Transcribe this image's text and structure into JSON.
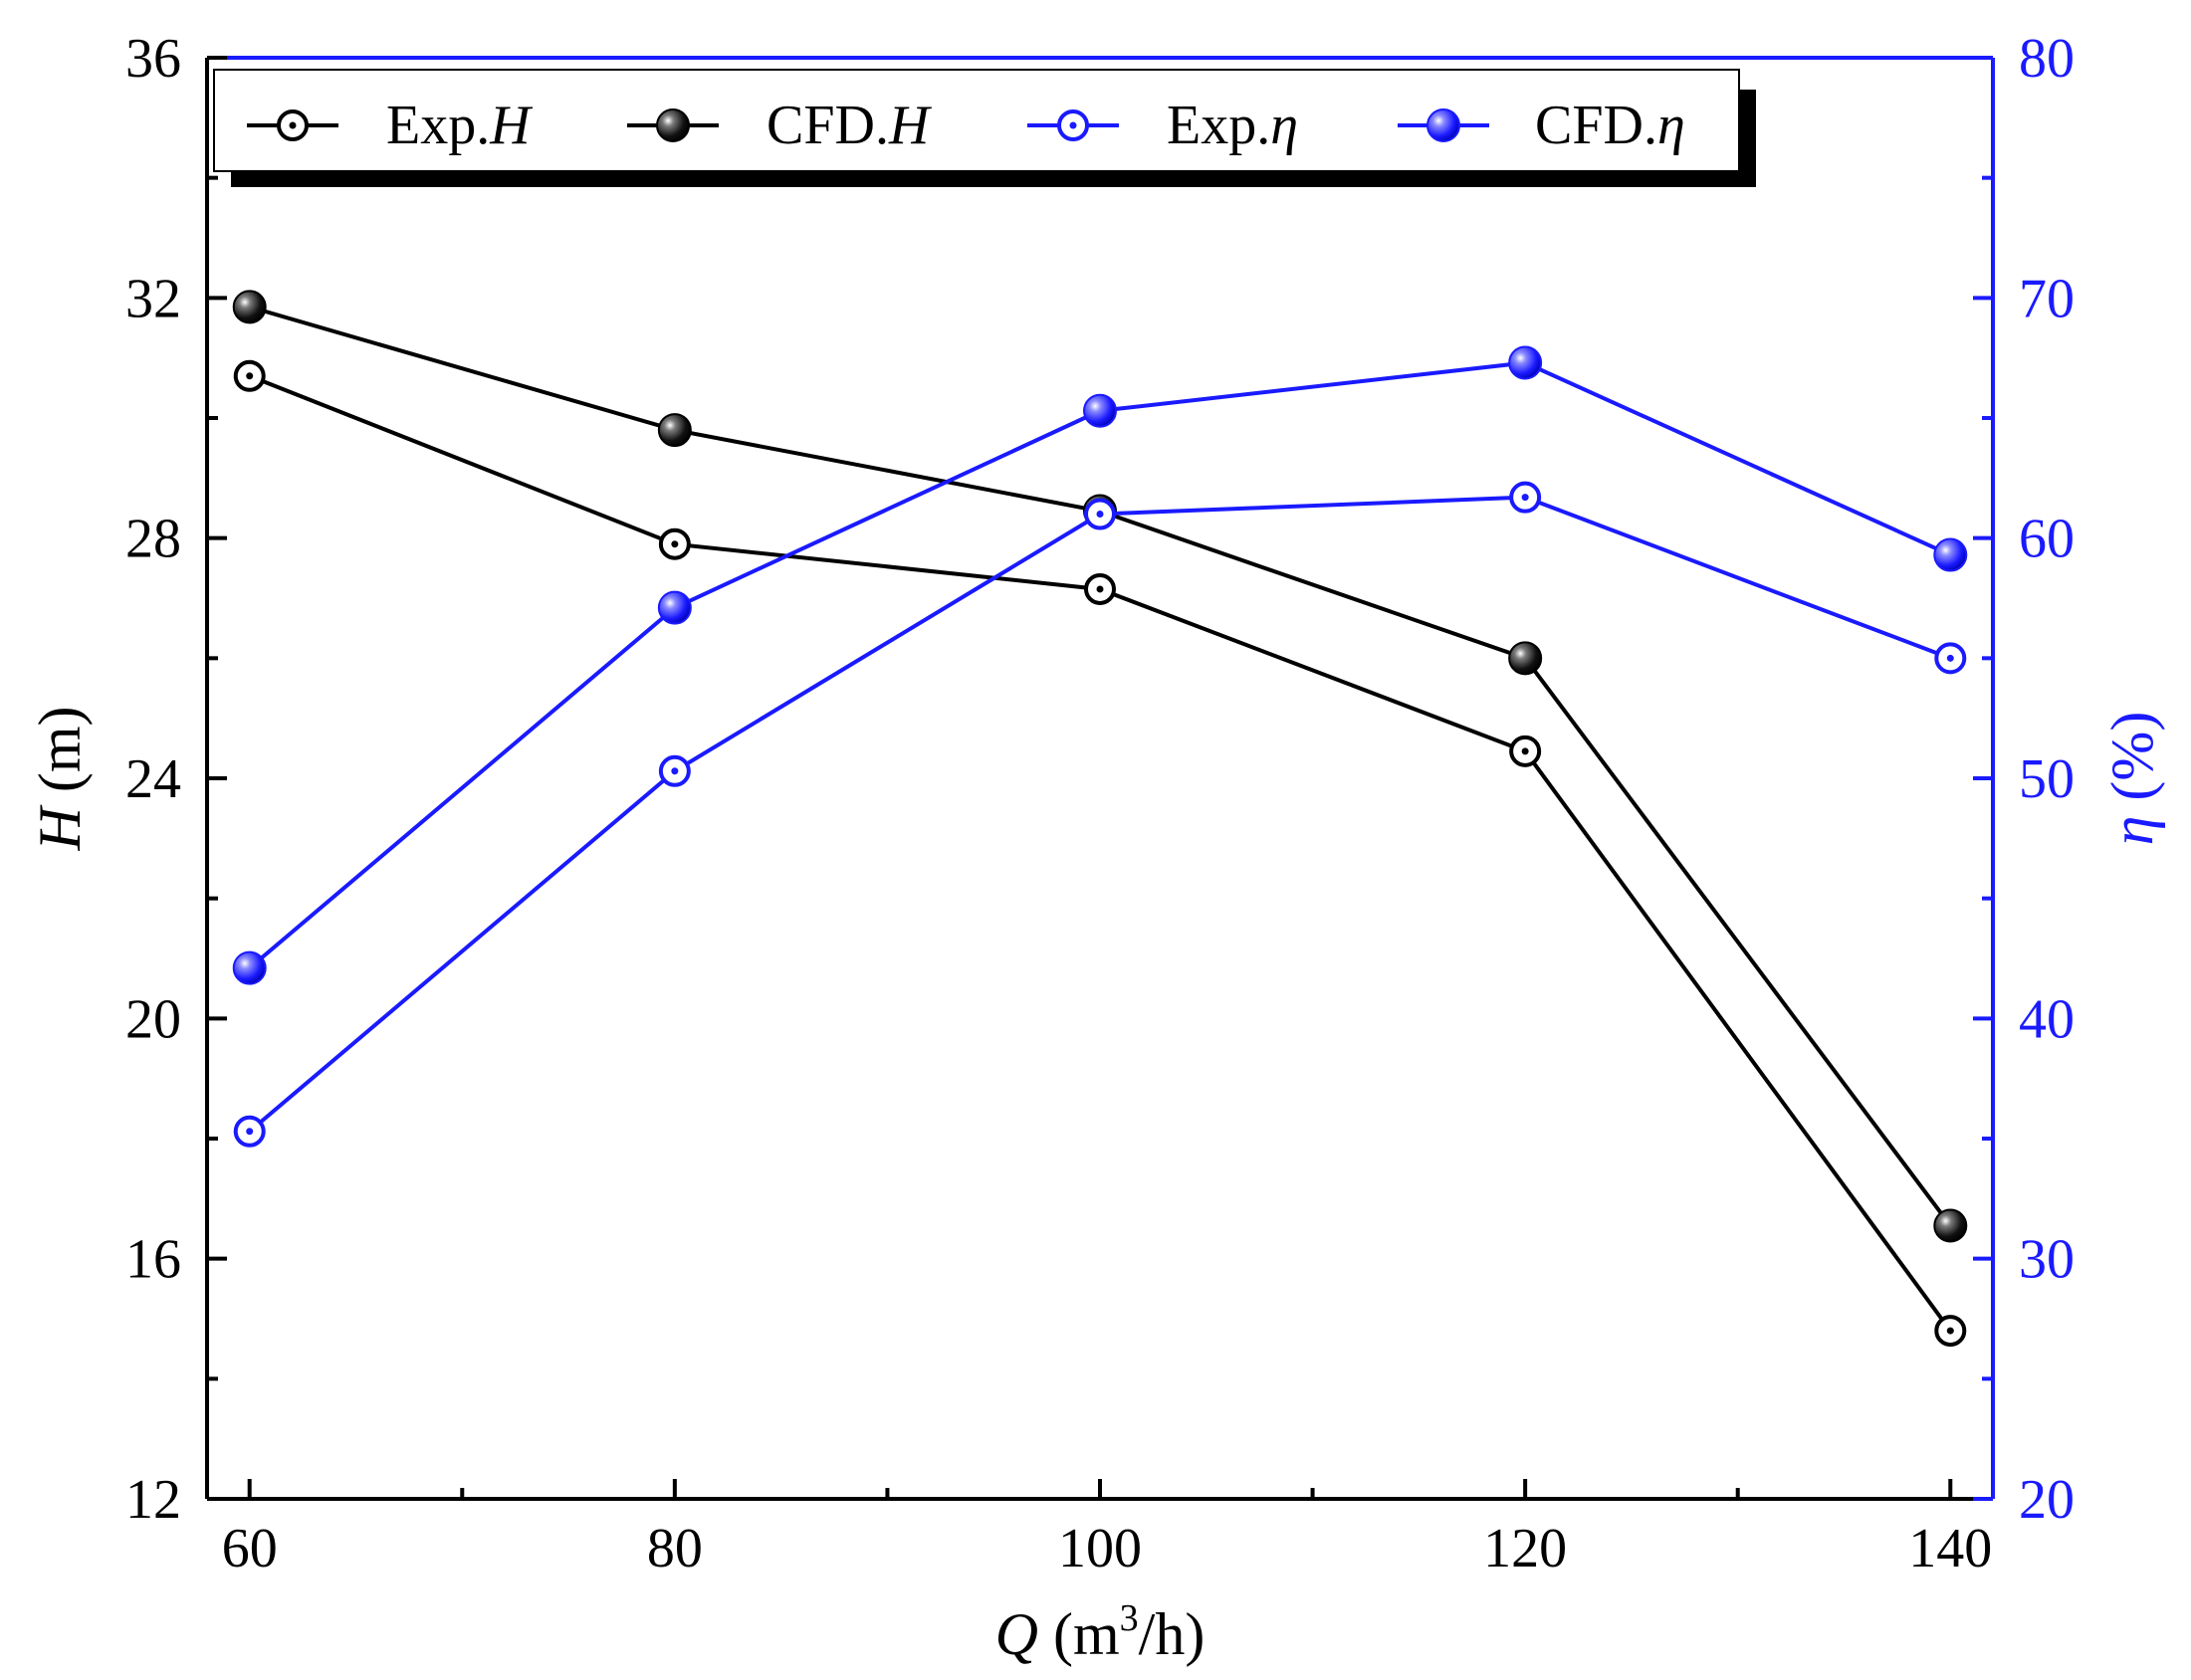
{
  "chart_data": {
    "type": "line",
    "title": "",
    "x": [
      60,
      80,
      100,
      120,
      140
    ],
    "xlabel_italic": "Q",
    "xlabel_unit_pre": " (m",
    "xlabel_unit_sup": "3",
    "xlabel_unit_post": "/h)",
    "xlim": [
      58,
      142
    ],
    "xticks": [
      60,
      80,
      100,
      120,
      140
    ],
    "xticks_minor": [
      70,
      90,
      110,
      130
    ],
    "ylabel_left_italic": "H",
    "ylabel_left_unit": " (m)",
    "ylim_left": [
      12,
      36
    ],
    "yticks_left": [
      12,
      16,
      20,
      24,
      28,
      32,
      36
    ],
    "ylabel_right_italic": "η",
    "ylabel_right_unit": " (%)",
    "ylim_right": [
      20,
      80
    ],
    "yticks_right": [
      20,
      30,
      40,
      50,
      60,
      70,
      80
    ],
    "right_axis_color": "#1a1aff",
    "left_axis_color": "#000000",
    "legend_position": "top",
    "series": [
      {
        "name": "Exp.H",
        "prefix": "Exp.",
        "symbol": "H",
        "axis": "left",
        "color": "#000000",
        "marker": "open-dot",
        "values": [
          30.7,
          27.9,
          27.15,
          24.45,
          14.8
        ]
      },
      {
        "name": "CFD.H",
        "prefix": "CFD.",
        "symbol": "H",
        "axis": "left",
        "color": "#000000",
        "marker": "filled-sphere",
        "values": [
          31.85,
          29.8,
          28.45,
          26.0,
          16.55
        ]
      },
      {
        "name": "Exp.η",
        "prefix": "Exp.",
        "symbol": "η",
        "axis": "right",
        "color": "#1a1aff",
        "marker": "open-dot",
        "values": [
          35.3,
          50.3,
          61.0,
          61.7,
          55.0
        ]
      },
      {
        "name": "CFD.η",
        "prefix": "CFD.",
        "symbol": "η",
        "axis": "right",
        "color": "#1a1aff",
        "marker": "filled-sphere",
        "values": [
          42.1,
          57.1,
          65.3,
          67.3,
          59.3
        ]
      }
    ]
  }
}
